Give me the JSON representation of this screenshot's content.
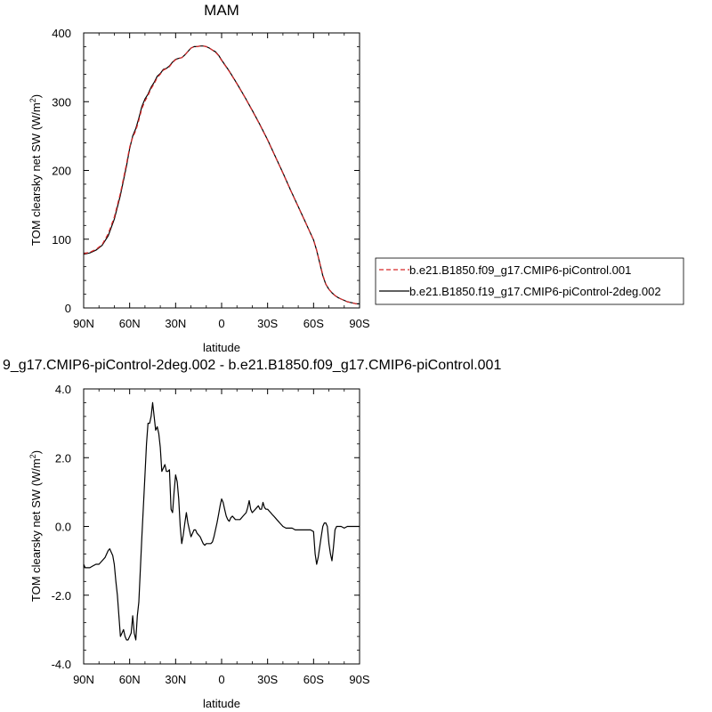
{
  "chart_data": [
    {
      "type": "line",
      "title": "MAM",
      "xlabel": "latitude",
      "ylabel_main": "TOM clearsky net SW (W/m",
      "ylabel_sup": "2",
      "ylabel_close": ")",
      "xlim": [
        90,
        -90
      ],
      "ylim": [
        0,
        400
      ],
      "x_ticks": [
        90,
        60,
        30,
        0,
        -30,
        -60,
        -90
      ],
      "x_tick_labels": [
        "90N",
        "60N",
        "30N",
        "0",
        "30S",
        "60S",
        "90S"
      ],
      "y_ticks": [
        0,
        100,
        200,
        300,
        400
      ],
      "y_tick_labels": [
        "0",
        "100",
        "200",
        "300",
        "400"
      ],
      "legend_position": "right",
      "series": [
        {
          "name": "b.e21.B1850.f09_g17.CMIP6-piControl.001",
          "color": "#d62728",
          "dash": "dashed",
          "x": [
            90,
            86,
            82,
            78,
            74,
            70,
            66,
            62,
            60,
            58,
            56,
            54,
            52,
            50,
            48,
            46,
            44,
            42,
            40,
            38,
            36,
            34,
            32,
            30,
            28,
            26,
            24,
            22,
            20,
            18,
            16,
            14,
            12,
            10,
            8,
            6,
            4,
            2,
            0,
            -5,
            -10,
            -15,
            -20,
            -25,
            -30,
            -35,
            -40,
            -45,
            -50,
            -55,
            -60,
            -62,
            -64,
            -66,
            -68,
            -70,
            -72,
            -74,
            -76,
            -78,
            -80,
            -82,
            -84,
            -86,
            -88,
            -90
          ],
          "y": [
            79,
            81,
            85,
            92,
            108,
            132,
            167,
            210,
            234,
            248,
            258,
            273,
            290,
            301,
            309,
            319,
            326,
            335,
            340,
            346,
            348,
            351,
            357,
            361,
            363,
            364,
            368,
            373,
            378,
            380,
            380,
            381,
            381,
            380,
            378,
            375,
            372,
            367,
            360,
            344,
            326,
            307,
            287,
            266,
            244,
            220,
            196,
            171,
            147,
            123,
            99,
            84,
            66,
            48,
            35,
            27,
            22,
            18,
            15,
            13,
            11,
            9,
            8,
            7,
            6,
            6
          ]
        },
        {
          "name": "b.e21.B1850.f19_g17.CMIP6-piControl-2deg.002",
          "color": "#000000",
          "dash": "solid",
          "x": [
            90,
            86,
            82,
            78,
            74,
            70,
            66,
            62,
            60,
            58,
            56,
            54,
            52,
            50,
            48,
            46,
            44,
            42,
            40,
            38,
            36,
            34,
            32,
            30,
            28,
            26,
            24,
            22,
            20,
            18,
            16,
            14,
            12,
            10,
            8,
            6,
            4,
            2,
            0,
            -5,
            -10,
            -15,
            -20,
            -25,
            -30,
            -35,
            -40,
            -45,
            -50,
            -55,
            -60,
            -62,
            -64,
            -66,
            -68,
            -70,
            -72,
            -74,
            -76,
            -78,
            -80,
            -82,
            -84,
            -86,
            -88,
            -90
          ],
          "y": [
            78,
            80,
            84,
            91,
            105,
            129,
            164,
            207,
            232,
            250,
            261,
            276,
            293,
            304,
            311,
            321,
            328,
            337,
            341,
            347,
            348.5,
            352,
            357.5,
            361.5,
            363,
            364,
            368,
            373,
            378,
            380,
            380,
            381,
            381,
            380,
            378,
            375,
            372.5,
            367.5,
            360.5,
            344.5,
            326.5,
            307.5,
            287.5,
            266.5,
            244.5,
            220.4,
            196.4,
            171.4,
            147.4,
            123.3,
            98.9,
            83.8,
            65.6,
            46.9,
            34.4,
            27,
            22,
            18,
            15,
            13,
            11,
            9,
            8,
            7,
            6,
            6
          ]
        }
      ]
    },
    {
      "type": "line",
      "title": "9_g17.CMIP6-piControl-2deg.002 - b.e21.B1850.f09_g17.CMIP6-piControl.001",
      "xlabel": "latitude",
      "ylabel_main": "TOM clearsky net SW (W/m",
      "ylabel_sup": "2",
      "ylabel_close": ")",
      "xlim": [
        90,
        -90
      ],
      "ylim": [
        -4.0,
        4.0
      ],
      "x_ticks": [
        90,
        60,
        30,
        0,
        -30,
        -60,
        -90
      ],
      "x_tick_labels": [
        "90N",
        "60N",
        "30N",
        "0",
        "30S",
        "60S",
        "90S"
      ],
      "y_ticks": [
        -4.0,
        -2.0,
        0.0,
        2.0,
        4.0
      ],
      "y_tick_labels": [
        "-4.0",
        "-2.0",
        "0.0",
        "2.0",
        "4.0"
      ],
      "series": [
        {
          "color": "#000000",
          "x": [
            90,
            89,
            88,
            86,
            84,
            82,
            80,
            78,
            76,
            74,
            73,
            72,
            71,
            70,
            69,
            68,
            67,
            66,
            65,
            64,
            63,
            62,
            61,
            60,
            59,
            58,
            57,
            56,
            55,
            54,
            52,
            50,
            49,
            48,
            47,
            46,
            45,
            44,
            43,
            42,
            41,
            40,
            39,
            38,
            37,
            36,
            35,
            34,
            33,
            32,
            31,
            30,
            29,
            28,
            27,
            26,
            25,
            24,
            23,
            22,
            21,
            20,
            19,
            18,
            17,
            16,
            15,
            14,
            13,
            12,
            11,
            10,
            9,
            8,
            7,
            6,
            5,
            4,
            3,
            2,
            1,
            0,
            -1,
            -2,
            -3,
            -4,
            -5,
            -6,
            -7,
            -8,
            -9,
            -10,
            -12,
            -14,
            -16,
            -17,
            -18,
            -19,
            -20,
            -22,
            -24,
            -25,
            -26,
            -27,
            -28,
            -29,
            -30,
            -31,
            -32,
            -33,
            -34,
            -35,
            -36,
            -37,
            -38,
            -40,
            -42,
            -44,
            -46,
            -48,
            -50,
            -52,
            -54,
            -56,
            -58,
            -60,
            -61,
            -62,
            -63,
            -64,
            -65,
            -66,
            -67,
            -68,
            -69,
            -70,
            -71,
            -72,
            -73,
            -74,
            -75,
            -76,
            -77,
            -78,
            -80,
            -82,
            -84,
            -86,
            -88,
            -90
          ],
          "y": [
            -1.1,
            -1.2,
            -1.2,
            -1.2,
            -1.15,
            -1.1,
            -1.1,
            -1.0,
            -0.9,
            -0.7,
            -0.65,
            -0.75,
            -0.85,
            -1.1,
            -1.6,
            -2.0,
            -2.6,
            -3.2,
            -3.1,
            -3.0,
            -3.2,
            -3.3,
            -3.3,
            -3.2,
            -3.1,
            -2.6,
            -3.1,
            -3.3,
            -2.6,
            -2.2,
            -0.3,
            1.5,
            2.4,
            3.0,
            3.0,
            3.2,
            3.6,
            3.2,
            2.8,
            2.9,
            2.7,
            2.3,
            1.6,
            1.7,
            1.8,
            1.6,
            1.6,
            1.65,
            0.5,
            0.4,
            1.0,
            1.5,
            1.3,
            0.8,
            0.0,
            -0.5,
            -0.25,
            0.1,
            0.4,
            0.1,
            -0.1,
            -0.3,
            -0.2,
            -0.1,
            -0.1,
            -0.2,
            -0.25,
            -0.3,
            -0.4,
            -0.5,
            -0.55,
            -0.5,
            -0.5,
            -0.5,
            -0.5,
            -0.45,
            -0.3,
            -0.1,
            0.1,
            0.35,
            0.6,
            0.8,
            0.7,
            0.5,
            0.3,
            0.2,
            0.15,
            0.25,
            0.3,
            0.25,
            0.2,
            0.2,
            0.2,
            0.3,
            0.4,
            0.55,
            0.75,
            0.5,
            0.4,
            0.5,
            0.6,
            0.5,
            0.5,
            0.7,
            0.55,
            0.5,
            0.5,
            0.45,
            0.4,
            0.35,
            0.3,
            0.25,
            0.2,
            0.15,
            0.1,
            0.0,
            -0.05,
            -0.05,
            -0.05,
            -0.1,
            -0.1,
            -0.1,
            -0.1,
            -0.1,
            -0.1,
            -0.15,
            -0.8,
            -1.1,
            -0.9,
            -0.6,
            -0.3,
            0.0,
            0.1,
            0.1,
            0.0,
            -0.5,
            -0.8,
            -1.0,
            -0.6,
            -0.1,
            0.0,
            0.0,
            0.0,
            0.0,
            -0.05,
            0.0,
            0.0,
            0.0,
            0.0,
            0.0
          ]
        }
      ]
    }
  ]
}
